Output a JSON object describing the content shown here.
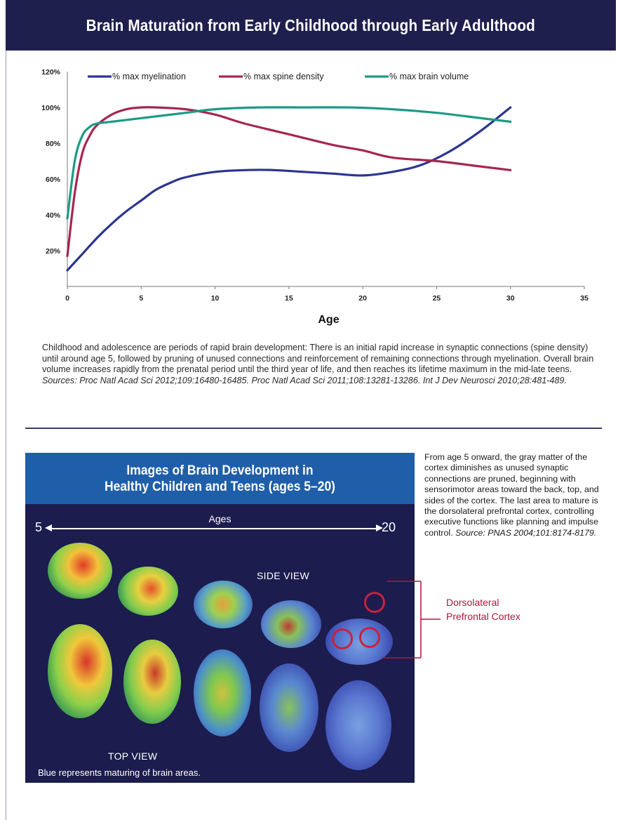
{
  "title": "Brain Maturation from Early Childhood through Early Adulthood",
  "chart_data": {
    "type": "line",
    "xlabel": "Age",
    "ylabel": "",
    "xlim": [
      0,
      35
    ],
    "ylim": [
      0,
      120
    ],
    "xticks": [
      "0",
      "5",
      "10",
      "15",
      "20",
      "25",
      "30",
      "35"
    ],
    "yticks": [
      "20%",
      "40%",
      "60%",
      "80%",
      "100%",
      "120%"
    ],
    "legend_position": "top",
    "grid": false,
    "series": [
      {
        "name": "% max myelination",
        "color": "#2a3591",
        "x": [
          0,
          1,
          2,
          3,
          4,
          5,
          6,
          7,
          8,
          10,
          12,
          14,
          16,
          18,
          20,
          22,
          24,
          26,
          28,
          30
        ],
        "y": [
          9,
          18,
          27,
          35,
          42,
          48,
          54,
          58,
          61,
          64,
          65,
          65,
          64,
          63,
          62,
          64,
          68,
          76,
          87,
          100
        ]
      },
      {
        "name": "% max spine density",
        "color": "#a52750",
        "x": [
          0,
          0.5,
          1,
          1.5,
          2,
          3,
          4,
          5,
          6,
          8,
          10,
          12,
          15,
          18,
          20,
          22,
          25,
          28,
          30
        ],
        "y": [
          17,
          52,
          74,
          84,
          90,
          96,
          99,
          100,
          100,
          99,
          96,
          91,
          85,
          79,
          76,
          72,
          70,
          67,
          65
        ]
      },
      {
        "name": "% max brain volume",
        "color": "#1d9a85",
        "x": [
          0,
          0.5,
          1,
          1.5,
          2,
          3,
          5,
          8,
          10,
          13,
          16,
          19,
          22,
          25,
          28,
          30
        ],
        "y": [
          38,
          70,
          84,
          89,
          91,
          92,
          94,
          97,
          99,
          100,
          100,
          100,
          99,
          97,
          94,
          92
        ]
      }
    ]
  },
  "caption": {
    "text": "Childhood and adolescence are periods of rapid brain development: There is an initial rapid increase in synaptic connections (spine density) until around age 5, followed by pruning of unused connections and reinforcement of remaining connections through myelination. Overall brain volume increases rapidly from the prenatal period until the third year of life, and then reaches its lifetime maximum in the mid-late teens. ",
    "sources": "Sources: Proc Natl Acad Sci 2012;109:16480-16485. Proc Natl Acad Sci 2011;108:13281-13286. Int J Dev Neurosci 2010;28:481-489."
  },
  "panel": {
    "title_line1": "Images of Brain Development in",
    "title_line2": "Healthy Children and Teens (ages 5–20)",
    "ages_label": "Ages",
    "age_start": "5",
    "age_end": "20",
    "side_view": "SIDE VIEW",
    "top_view": "TOP VIEW",
    "note": "Blue represents maturing of brain areas."
  },
  "side_text": {
    "text": "From age 5 onward, the gray matter of the cortex diminishes as unused synaptic connections are pruned, beginning with sensorimotor areas toward the back, top, and sides of the cortex. The last area to mature is the dorsolateral prefrontal cortex, controlling executive functions like planning and impulse control. ",
    "source": "Source: PNAS 2004;101:8174-8179."
  },
  "callout": {
    "line1": "Dorsolateral",
    "line2": "Prefrontal Cortex",
    "color": "#b5143c"
  }
}
